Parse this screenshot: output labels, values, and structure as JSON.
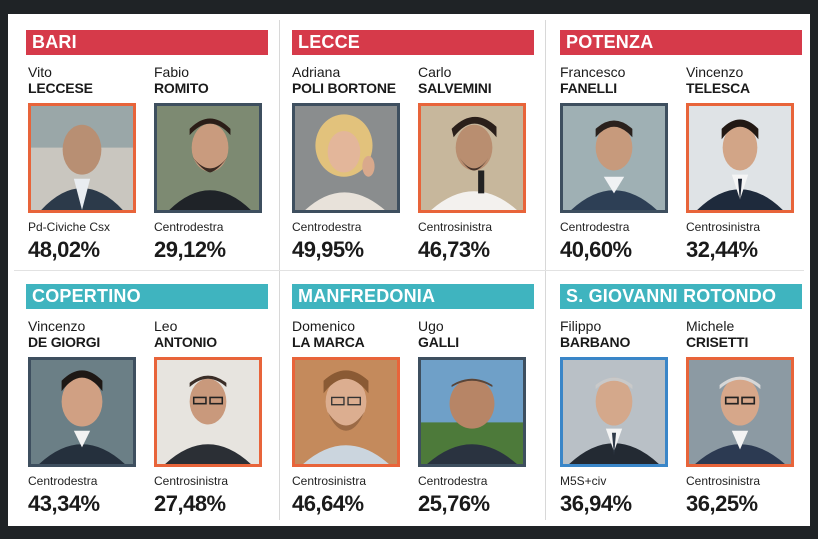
{
  "colors": {
    "red_banner": "#d63a4a",
    "teal_banner": "#3fb4bf",
    "winner_frame": "#e8643a",
    "runner_frame": "#3e4f5f",
    "blue_frame": "#3a86c8"
  },
  "cities": [
    {
      "name": "BARI",
      "banner_color": "#d63a4a",
      "candidates": [
        {
          "first": "Vito",
          "last": "LECCESE",
          "party": "Pd-Civiche Csx",
          "percent": "48,02%",
          "frame": "#e8643a"
        },
        {
          "first": "Fabio",
          "last": "ROMITO",
          "party": "Centrodestra",
          "percent": "29,12%",
          "frame": "#3e4f5f"
        }
      ]
    },
    {
      "name": "LECCE",
      "banner_color": "#d63a4a",
      "candidates": [
        {
          "first": "Adriana",
          "last": "POLI BORTONE",
          "party": "Centrodestra",
          "percent": "49,95%",
          "frame": "#3e4f5f"
        },
        {
          "first": "Carlo",
          "last": "SALVEMINI",
          "party": "Centrosinistra",
          "percent": "46,73%",
          "frame": "#e8643a"
        }
      ]
    },
    {
      "name": "POTENZA",
      "banner_color": "#d63a4a",
      "candidates": [
        {
          "first": "Francesco",
          "last": "FANELLI",
          "party": "Centrodestra",
          "percent": "40,60%",
          "frame": "#3e4f5f"
        },
        {
          "first": "Vincenzo",
          "last": "TELESCA",
          "party": "Centrosinistra",
          "percent": "32,44%",
          "frame": "#e8643a"
        }
      ]
    },
    {
      "name": "COPERTINO",
      "banner_color": "#3fb4bf",
      "candidates": [
        {
          "first": "Vincenzo",
          "last": "DE GIORGI",
          "party": "Centrodestra",
          "percent": "43,34%",
          "frame": "#3e4f5f"
        },
        {
          "first": "Leo",
          "last": "ANTONIO",
          "party": "Centrosinistra",
          "percent": "27,48%",
          "frame": "#e8643a"
        }
      ]
    },
    {
      "name": "MANFREDONIA",
      "banner_color": "#3fb4bf",
      "candidates": [
        {
          "first": "Domenico",
          "last": "LA MARCA",
          "party": "Centrosinistra",
          "percent": "46,64%",
          "frame": "#e8643a"
        },
        {
          "first": "Ugo",
          "last": "GALLI",
          "party": "Centrodestra",
          "percent": "25,76%",
          "frame": "#3e4f5f"
        }
      ]
    },
    {
      "name": "S. GIOVANNI ROTONDO",
      "banner_color": "#3fb4bf",
      "candidates": [
        {
          "first": "Filippo",
          "last": "BARBANO",
          "party": "M5S+civ",
          "percent": "36,94%",
          "frame": "#3a86c8"
        },
        {
          "first": "Michele",
          "last": "CRISETTI",
          "party": "Centrosinistra",
          "percent": "36,25%",
          "frame": "#e8643a"
        }
      ]
    }
  ]
}
